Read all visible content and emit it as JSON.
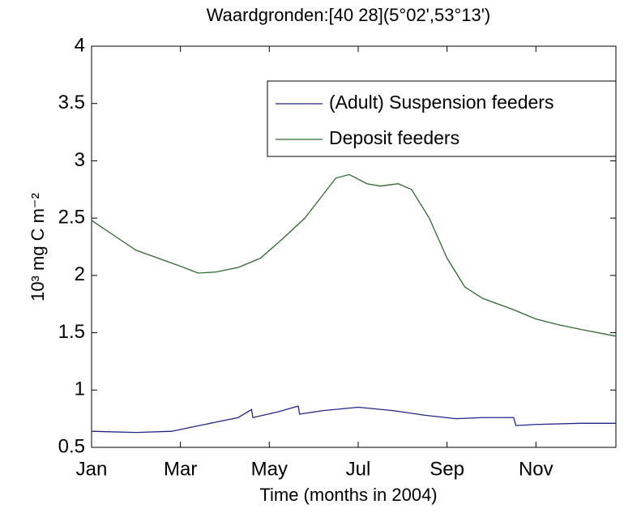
{
  "chart_data": {
    "type": "line",
    "title": "Waardgronden:[40 28](5°02',53°13')",
    "xlabel": "Time (months in 2004)",
    "ylabel": "10³ mg C m⁻²",
    "xlim": [
      1,
      12.8
    ],
    "xticks": [
      {
        "value": 1,
        "label": "Jan"
      },
      {
        "value": 3,
        "label": "Mar"
      },
      {
        "value": 5,
        "label": "May"
      },
      {
        "value": 7,
        "label": "Jul"
      },
      {
        "value": 9,
        "label": "Sep"
      },
      {
        "value": 11,
        "label": "Nov"
      }
    ],
    "ylim": [
      0.5,
      4
    ],
    "yticks": [
      0.5,
      1,
      1.5,
      2,
      2.5,
      3,
      3.5,
      4
    ],
    "grid": false,
    "legend": "upper right",
    "series": [
      {
        "name": "(Adult) Suspension feeders",
        "color": "#23238c",
        "x": [
          1,
          2,
          2.8,
          3.3,
          3.8,
          4.3,
          4.6,
          4.63,
          5.2,
          5.65,
          5.68,
          6.2,
          7,
          7.8,
          8.5,
          9.2,
          9.8,
          10.5,
          10.55,
          11,
          12,
          12.8
        ],
        "values": [
          0.64,
          0.63,
          0.64,
          0.68,
          0.72,
          0.76,
          0.83,
          0.76,
          0.81,
          0.86,
          0.79,
          0.82,
          0.85,
          0.82,
          0.78,
          0.75,
          0.76,
          0.76,
          0.69,
          0.7,
          0.71,
          0.71
        ]
      },
      {
        "name": "Deposit feeders",
        "color": "#2f6a2f",
        "x": [
          1,
          1.5,
          2,
          2.5,
          3,
          3.4,
          3.8,
          4.3,
          4.8,
          5.3,
          5.8,
          6.2,
          6.5,
          6.8,
          7.2,
          7.5,
          7.9,
          8.2,
          8.6,
          9,
          9.4,
          9.8,
          10.5,
          11,
          11.5,
          12,
          12.8
        ],
        "values": [
          2.48,
          2.35,
          2.22,
          2.15,
          2.08,
          2.02,
          2.03,
          2.07,
          2.15,
          2.32,
          2.5,
          2.7,
          2.85,
          2.88,
          2.8,
          2.78,
          2.8,
          2.75,
          2.5,
          2.15,
          1.9,
          1.8,
          1.7,
          1.62,
          1.57,
          1.53,
          1.47
        ]
      }
    ]
  }
}
